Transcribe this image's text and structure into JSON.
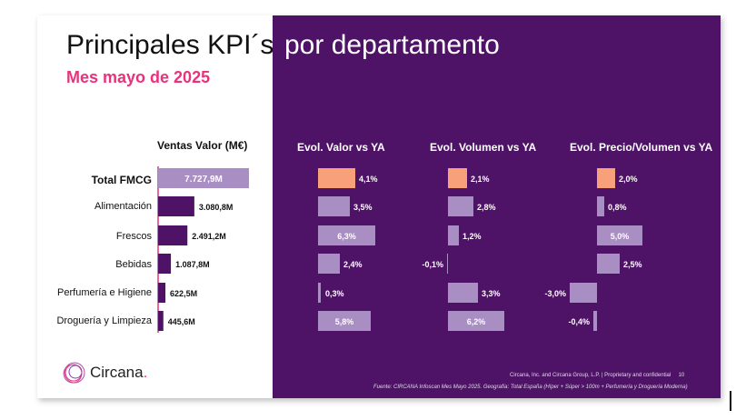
{
  "slide": {
    "title_part1": "Principales KPI´s",
    "title_part2": "por departamento",
    "subtitle": "Mes mayo de 2025",
    "footer_company": "Circana, Inc. and Circana Group, L.P. |  Proprietary and confidential",
    "footer_page": "10",
    "footer_source": "Fuente: CIRCANA Infoscan Mes Mayo 2025. Geografía: Total España (Híper + Súper > 100m + Perfumería y Droguería Moderna)",
    "logo_text": "Circana",
    "logo_dot": "."
  },
  "colors": {
    "purple_bg": "#4e1266",
    "bar_dark": "#4e1266",
    "bar_light": "#a98ec4",
    "bar_highlight": "#f8a07a",
    "pink": "#e8327c"
  },
  "chart_data": {
    "type": "bar",
    "categories": [
      "Total FMCG",
      "Alimentación",
      "Frescos",
      "Bebidas",
      "Perfumería e Higiene",
      "Droguería y Limpieza"
    ],
    "panels": [
      {
        "title": "Ventas Valor (M€)",
        "values": [
          7727.9,
          3080.8,
          2491.2,
          1087.8,
          622.5,
          445.6
        ],
        "labels": [
          "7.727,9M",
          "3.080,8M",
          "2.491,2M",
          "1.087,8M",
          "622,5M",
          "445,6M"
        ]
      },
      {
        "title": "Evol. Valor vs YA",
        "values": [
          4.1,
          3.5,
          6.3,
          2.4,
          0.3,
          5.8
        ],
        "labels": [
          "4,1%",
          "3,5%",
          "6,3%",
          "2,4%",
          "0,3%",
          "5,8%"
        ]
      },
      {
        "title": "Evol. Volumen vs YA",
        "values": [
          2.1,
          2.8,
          1.2,
          -0.1,
          3.3,
          6.2
        ],
        "labels": [
          "2,1%",
          "2,8%",
          "1,2%",
          "-0,1%",
          "3,3%",
          "6,2%"
        ]
      },
      {
        "title": "Evol. Precio/Volumen vs YA",
        "values": [
          2.0,
          0.8,
          5.0,
          2.5,
          -3.0,
          -0.4
        ],
        "labels": [
          "2,0%",
          "0,8%",
          "5,0%",
          "2,5%",
          "-3,0%",
          "-0,4%"
        ]
      }
    ]
  }
}
